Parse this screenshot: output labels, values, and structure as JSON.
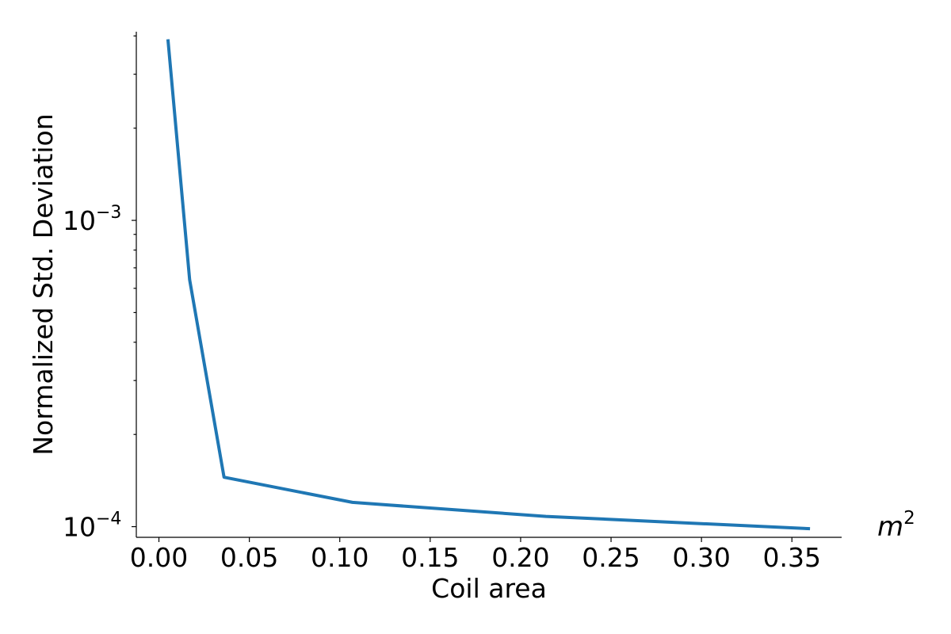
{
  "chart_data": {
    "type": "line",
    "xlabel": "Coil area",
    "ylabel": "Normalized Std. Deviation",
    "x_unit_base": "m",
    "x_unit_exp": "2",
    "xlim": [
      -0.0125,
      0.3775
    ],
    "ylim": [
      9.23e-05,
      0.00413
    ],
    "yscale": "log",
    "grid": false,
    "x_ticks": [
      "0.00",
      "0.05",
      "0.10",
      "0.15",
      "0.20",
      "0.25",
      "0.30",
      "0.35"
    ],
    "x_tick_values": [
      0.0,
      0.05,
      0.1,
      0.15,
      0.2,
      0.25,
      0.3,
      0.35
    ],
    "y_ticks": [
      {
        "value": 0.0001,
        "base": "10",
        "exp": "−4"
      },
      {
        "value": 0.001,
        "base": "10",
        "exp": "−3"
      }
    ],
    "series": [
      {
        "color": "#1f77b4",
        "x": [
          0.005,
          0.017,
          0.036,
          0.107,
          0.214,
          0.36
        ],
        "y": [
          0.0039,
          0.00064,
          0.000145,
          0.00012,
          0.000108,
          9.85e-05
        ]
      }
    ]
  }
}
